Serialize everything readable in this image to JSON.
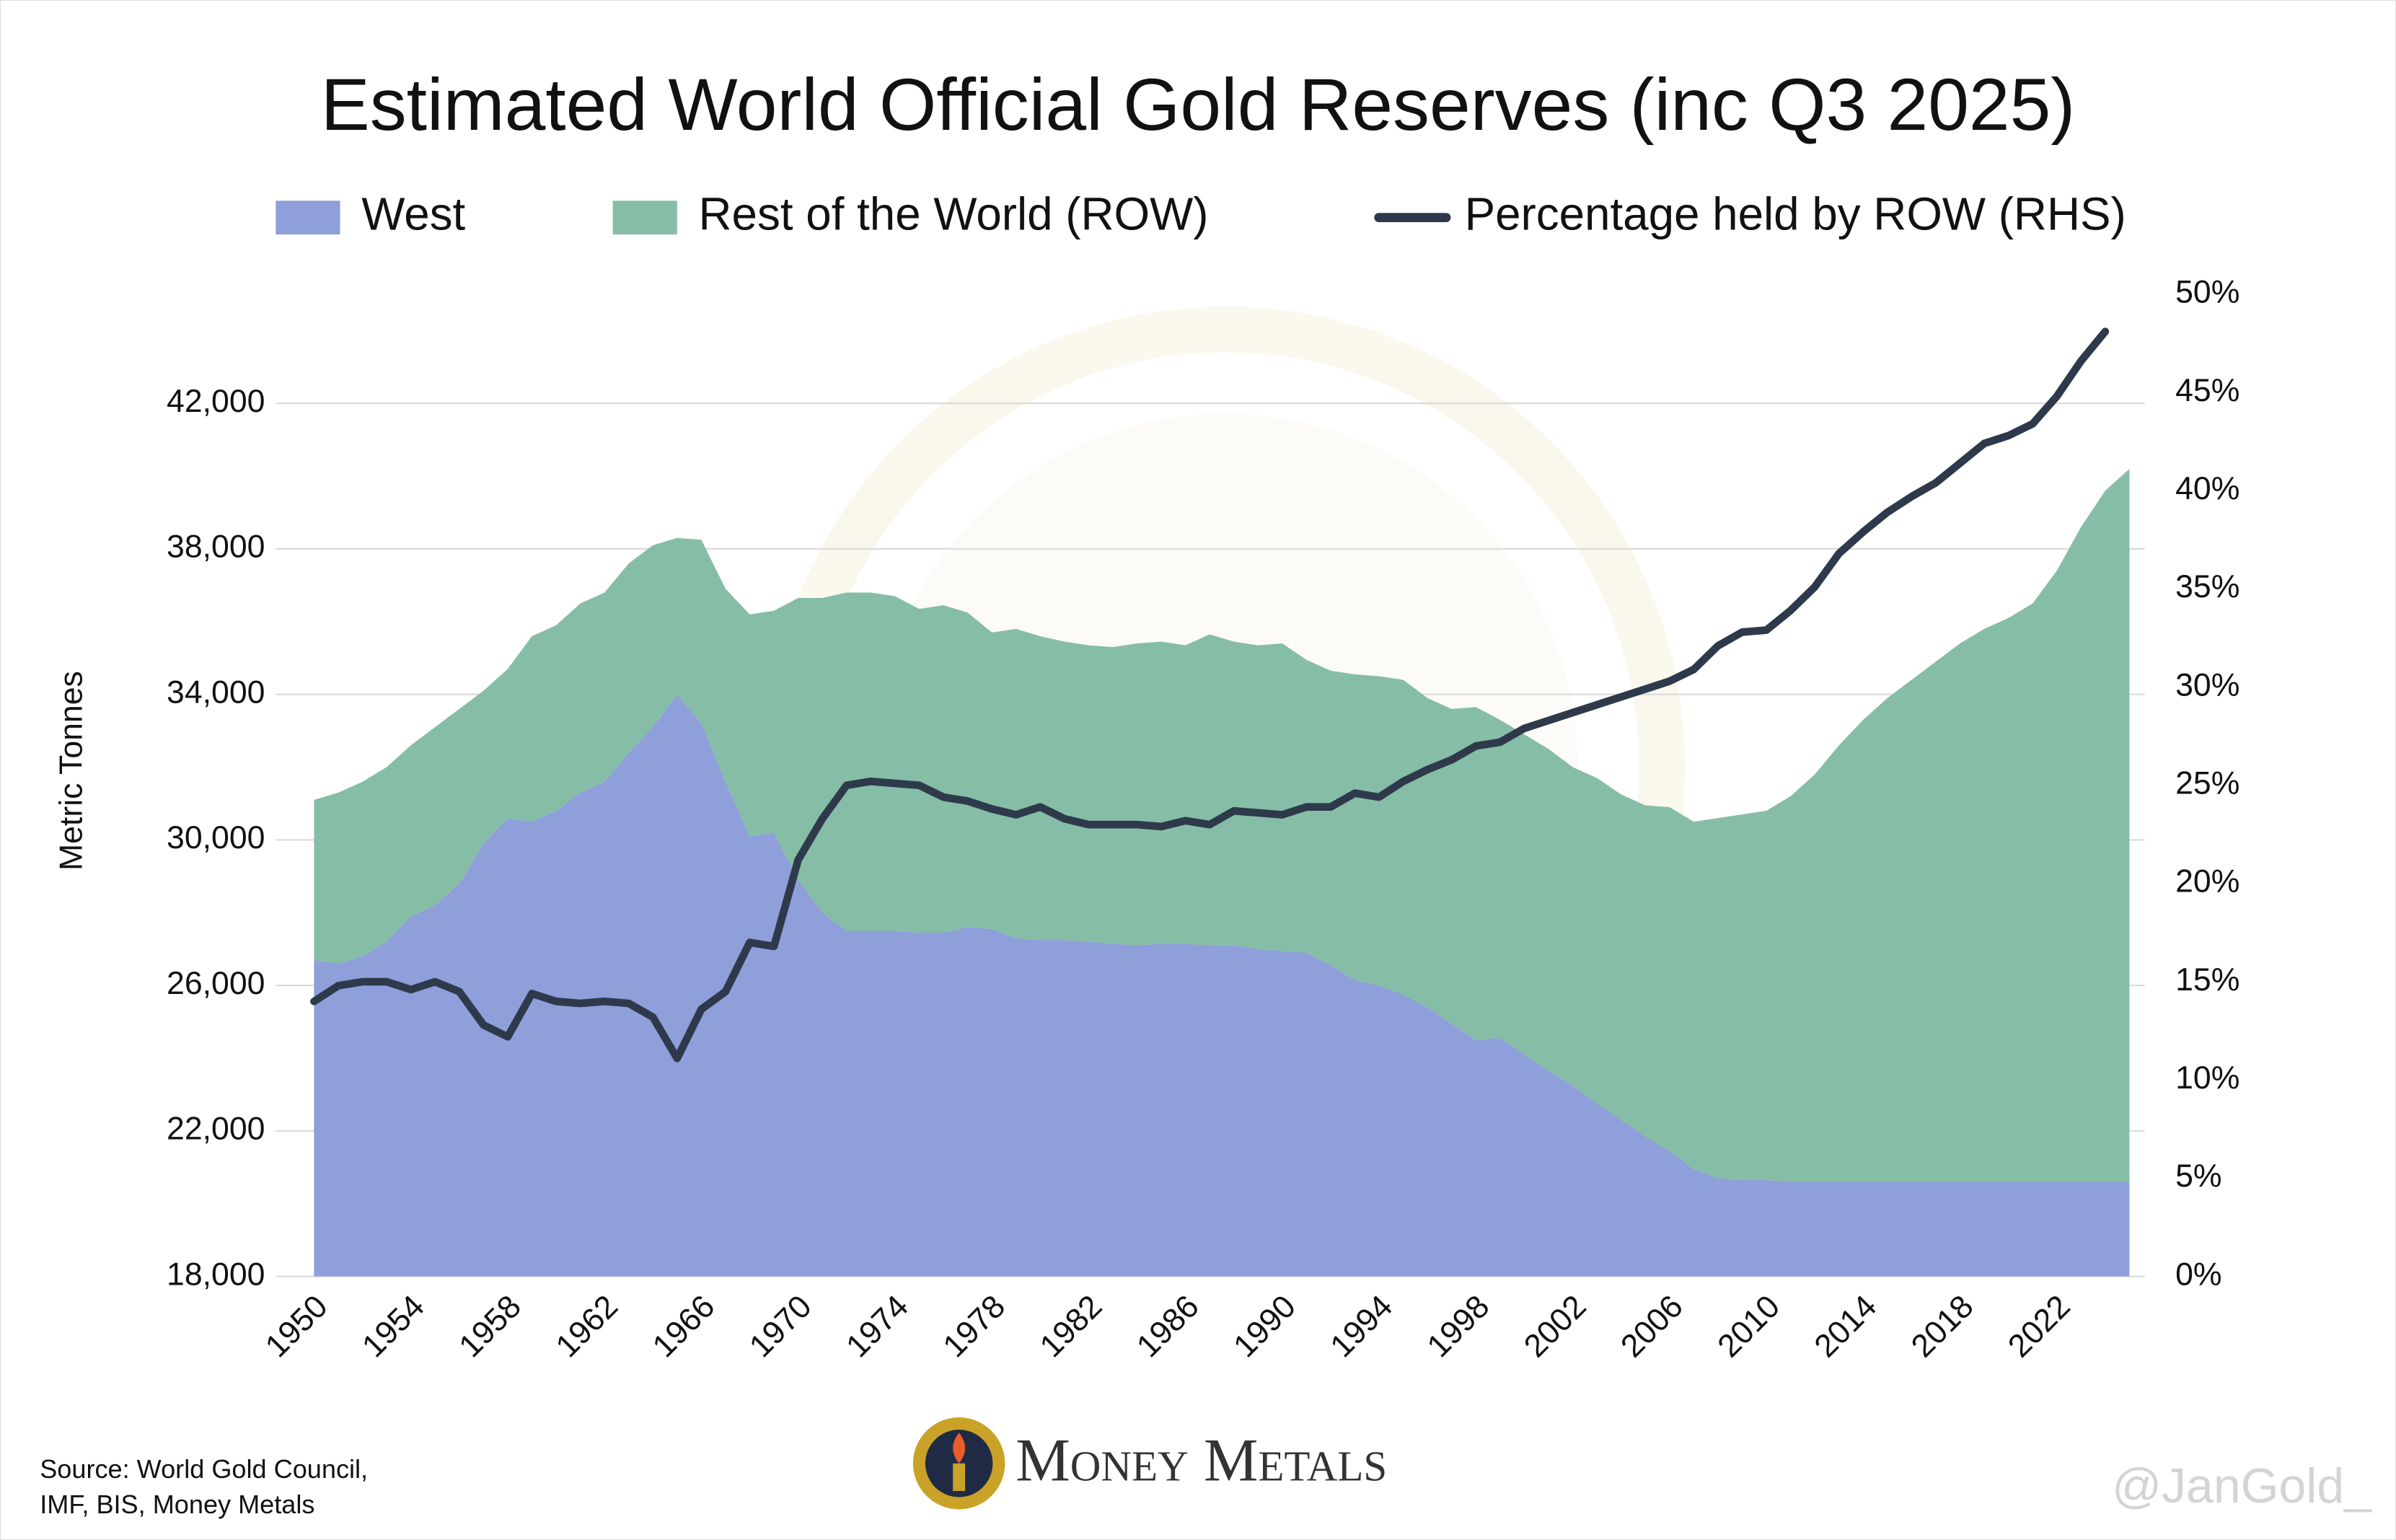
{
  "chart_data": {
    "type": "area",
    "title": "Estimated World Official Gold Reserves (inc Q3 2025)",
    "y_label": "Metric Tonnes",
    "source": [
      "Source: World Gold Council,",
      "IMF, BIS, Money Metals"
    ],
    "logo_text": "Money Metals",
    "watermark": "@JanGold_",
    "x": [
      1950,
      1951,
      1952,
      1953,
      1954,
      1955,
      1956,
      1957,
      1958,
      1959,
      1960,
      1961,
      1962,
      1963,
      1964,
      1965,
      1966,
      1967,
      1968,
      1969,
      1970,
      1971,
      1972,
      1973,
      1974,
      1975,
      1976,
      1977,
      1978,
      1979,
      1980,
      1981,
      1982,
      1983,
      1984,
      1985,
      1986,
      1987,
      1988,
      1989,
      1990,
      1991,
      1992,
      1993,
      1994,
      1995,
      1996,
      1997,
      1998,
      1999,
      2000,
      2001,
      2002,
      2003,
      2004,
      2005,
      2006,
      2007,
      2008,
      2009,
      2010,
      2011,
      2012,
      2013,
      2014,
      2015,
      2016,
      2017,
      2018,
      2019,
      2020,
      2021,
      2022,
      2023,
      2024,
      2025
    ],
    "xlim": [
      1950,
      2025
    ],
    "xticks": [
      1950,
      1954,
      1958,
      1962,
      1966,
      1970,
      1974,
      1978,
      1982,
      1986,
      1990,
      1994,
      1998,
      2002,
      2006,
      2010,
      2014,
      2018,
      2022
    ],
    "ylim": [
      18000,
      45000
    ],
    "yticks": [
      {
        "value": 18000,
        "label": "18,000"
      },
      {
        "value": 22000,
        "label": "22,000"
      },
      {
        "value": 26000,
        "label": "26,000"
      },
      {
        "value": 30000,
        "label": "30,000"
      },
      {
        "value": 34000,
        "label": "34,000"
      },
      {
        "value": 38000,
        "label": "38,000"
      },
      {
        "value": 42000,
        "label": "42,000"
      }
    ],
    "y2lim": [
      0,
      50
    ],
    "y2ticks": [
      {
        "value": 0,
        "label": "0%"
      },
      {
        "value": 5,
        "label": "5%"
      },
      {
        "value": 10,
        "label": "10%"
      },
      {
        "value": 15,
        "label": "15%"
      },
      {
        "value": 20,
        "label": "20%"
      },
      {
        "value": 25,
        "label": "25%"
      },
      {
        "value": 30,
        "label": "30%"
      },
      {
        "value": 35,
        "label": "35%"
      },
      {
        "value": 40,
        "label": "40%"
      },
      {
        "value": 45,
        "label": "45%"
      },
      {
        "value": 50,
        "label": "50%"
      }
    ],
    "grid": true,
    "stacked": true,
    "series": [
      {
        "name": "West",
        "color": "#8e9fd9",
        "values": [
          26700,
          26600,
          26800,
          27200,
          27900,
          28200,
          28800,
          29900,
          30600,
          30500,
          30800,
          31300,
          31600,
          32400,
          33100,
          34000,
          33200,
          31600,
          30100,
          30200,
          28900,
          28000,
          27500,
          27500,
          27500,
          27450,
          27450,
          27600,
          27550,
          27300,
          27250,
          27250,
          27200,
          27150,
          27100,
          27150,
          27150,
          27100,
          27100,
          27000,
          26950,
          26900,
          26550,
          26150,
          26000,
          25750,
          25400,
          24950,
          24500,
          24550,
          24100,
          23650,
          23250,
          22750,
          22300,
          21850,
          21450,
          20950,
          20700,
          20650,
          20650,
          20600,
          20600,
          20600,
          20600,
          20600,
          20600,
          20600,
          20600,
          20600,
          20600,
          20600,
          20600,
          20600,
          20600,
          20600
        ]
      },
      {
        "name": "Rest of the World (ROW)",
        "color": "#86bda6",
        "values": [
          4400,
          4700,
          4800,
          4800,
          4700,
          4900,
          4800,
          4200,
          4100,
          5100,
          5100,
          5200,
          5200,
          5200,
          5000,
          4300,
          5050,
          5300,
          6100,
          6100,
          7750,
          8650,
          9300,
          9300,
          9200,
          8900,
          9000,
          8650,
          8150,
          8500,
          8350,
          8200,
          8150,
          8150,
          8300,
          8300,
          8200,
          8550,
          8350,
          8350,
          8450,
          8050,
          8100,
          8400,
          8500,
          8650,
          8500,
          8650,
          9150,
          8750,
          8800,
          8850,
          8750,
          8950,
          8950,
          9100,
          9450,
          9550,
          9900,
          10050,
          10150,
          10600,
          11200,
          12000,
          12700,
          13300,
          13800,
          14300,
          14800,
          15200,
          15500,
          15900,
          16800,
          18000,
          19000,
          19600
        ]
      },
      {
        "name": "Percentage held by ROW (RHS)",
        "color": "#2e3a4c",
        "type": "line",
        "axis": "y2",
        "values": [
          14,
          14.8,
          15,
          15,
          14.6,
          15,
          14.5,
          12.8,
          12.2,
          14.4,
          14,
          13.9,
          14,
          13.9,
          13.2,
          11.1,
          13.6,
          14.5,
          17,
          16.8,
          21.2,
          23.3,
          25,
          25.2,
          25.1,
          25,
          24.4,
          24.2,
          23.8,
          23.5,
          23.9,
          23.3,
          23,
          23,
          23,
          22.9,
          23.2,
          23,
          23.7,
          23.6,
          23.5,
          23.9,
          23.9,
          24.6,
          24.4,
          25.2,
          25.8,
          26.3,
          27,
          27.2,
          27.9,
          28.3,
          28.7,
          29.1,
          29.5,
          29.9,
          30.3,
          30.9,
          32.1,
          32.8,
          32.9,
          33.9,
          35.1,
          36.8,
          37.9,
          38.9,
          39.7,
          40.4,
          41.4,
          42.4,
          42.8,
          43.4,
          44.8,
          46.6,
          48.1,
          null
        ]
      }
    ]
  }
}
